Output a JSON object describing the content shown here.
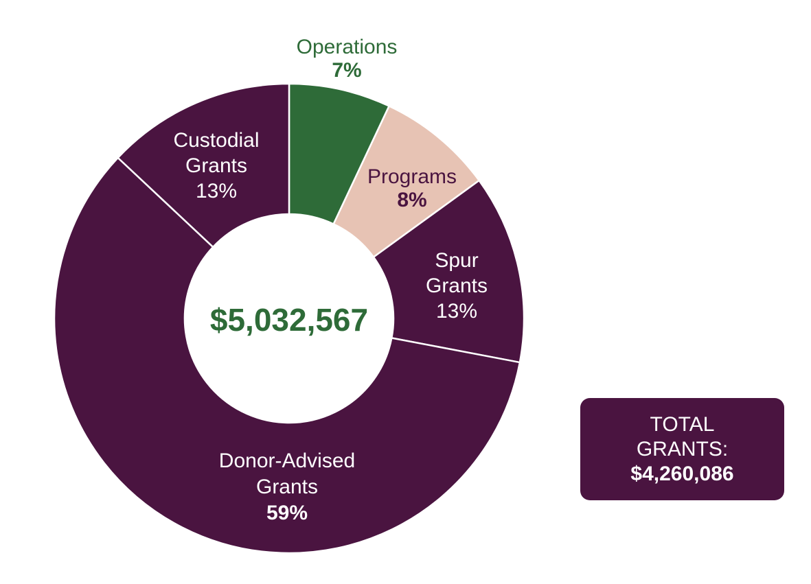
{
  "colors": {
    "plum": "#4a1440",
    "green": "#2e6b38",
    "peach": "#e7c3b4",
    "white": "#ffffff"
  },
  "center_total": "$5,032,567",
  "total_grants": {
    "line1": "TOTAL",
    "line2": "GRANTS:",
    "amount": "$4,260,086"
  },
  "chart_data": {
    "type": "pie",
    "variant": "donut",
    "title": "",
    "total": "$5,032,567",
    "slices": [
      {
        "name": "Operations",
        "label_lines": [
          "Operations"
        ],
        "percent_label": "7%",
        "value": 7,
        "color": "#2e6b38",
        "label_color": "#2e6b38",
        "percent_bold": true
      },
      {
        "name": "Programs",
        "label_lines": [
          "Programs"
        ],
        "percent_label": "8%",
        "value": 8,
        "color": "#e7c3b4",
        "label_color": "#4a1440",
        "percent_bold": true
      },
      {
        "name": "Spur Grants",
        "label_lines": [
          "Spur",
          "Grants"
        ],
        "percent_label": "13%",
        "value": 13,
        "color": "#4a1440",
        "label_color": "#ffffff",
        "percent_bold": false
      },
      {
        "name": "Donor-Advised Grants",
        "label_lines": [
          "Donor-Advised",
          "Grants"
        ],
        "percent_label": "59%",
        "value": 59,
        "color": "#4a1440",
        "label_color": "#ffffff",
        "percent_bold": true
      },
      {
        "name": "Custodial Grants",
        "label_lines": [
          "Custodial",
          "Grants"
        ],
        "percent_label": "13%",
        "value": 13,
        "color": "#4a1440",
        "label_color": "#ffffff",
        "percent_bold": false
      }
    ]
  }
}
